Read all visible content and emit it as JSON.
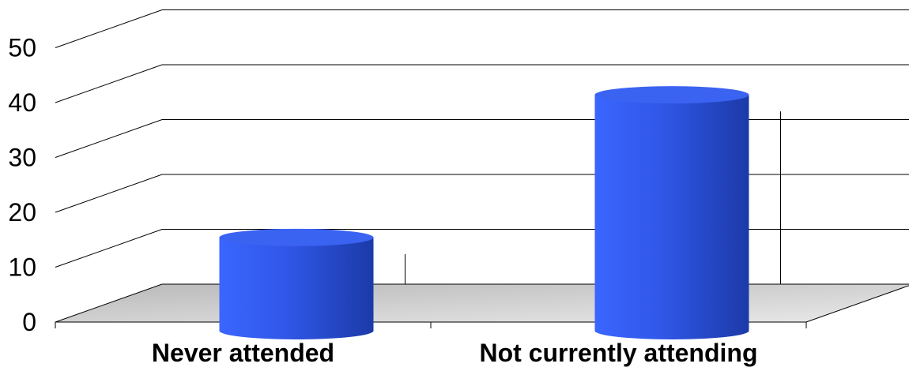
{
  "chart_data": {
    "type": "bar",
    "categories": [
      "Never attended",
      "Not currently attending"
    ],
    "values": [
      17,
      43
    ],
    "title": "",
    "xlabel": "",
    "ylabel": "",
    "ylim": [
      0,
      50
    ],
    "yticks": [
      0,
      10,
      20,
      30,
      40,
      50
    ],
    "grid": true,
    "legend": "none",
    "style": "3d-cylinder",
    "colors": {
      "bar": "#2f56e6",
      "floor": "#cccccc",
      "background": "#ffffff"
    }
  }
}
